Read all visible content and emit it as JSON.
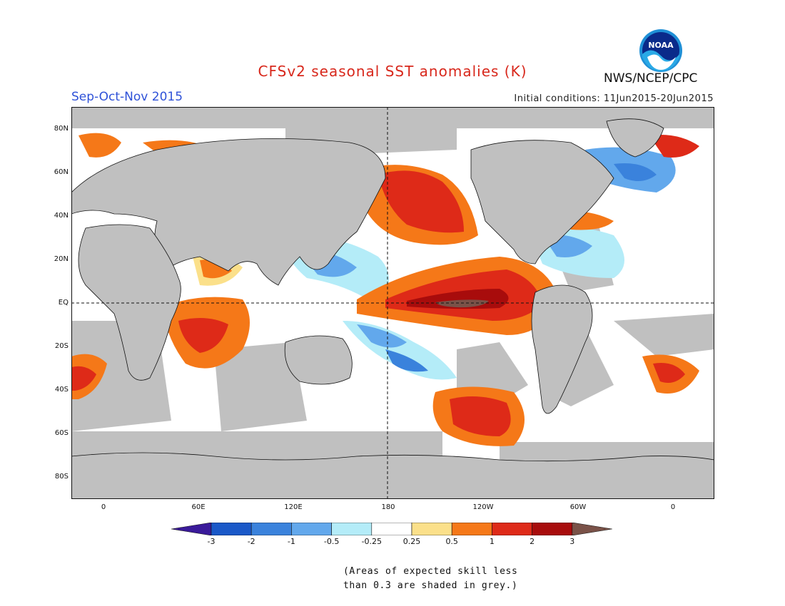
{
  "title": "CFSv2 seasonal SST anomalies (K)",
  "season": "Sep-Oct-Nov 2015",
  "initial_conditions": "Initial conditions: 11Jun2015-20Jun2015",
  "agency": "NWS/NCEP/CPC",
  "logo_text": "NOAA",
  "colors": {
    "land": "#c0c0c0",
    "ocean_neutral": "#ffffff",
    "title": "#d8281c",
    "season": "#2f52d8"
  },
  "map": {
    "lat_labels": [
      "80N",
      "60N",
      "40N",
      "20N",
      "EQ",
      "20S",
      "40S",
      "60S",
      "80S"
    ],
    "lon_labels": [
      "0",
      "60E",
      "120E",
      "180",
      "120W",
      "60W",
      "0"
    ]
  },
  "colorbar": {
    "labels": [
      "-3",
      "-2",
      "-1",
      "-0.5",
      "-0.25",
      "0.25",
      "0.5",
      "1",
      "2",
      "3"
    ],
    "colors": [
      "#3a1a9a",
      "#1a58c8",
      "#3a82dc",
      "#62a8ec",
      "#b4ecf8",
      "#ffffff",
      "#fbe08a",
      "#f57818",
      "#de2a18",
      "#a80c0c",
      "#7a5248"
    ]
  },
  "footnote": {
    "line1": "(Areas of expected skill less",
    "line2": "than 0.3 are shaded in grey.)"
  }
}
